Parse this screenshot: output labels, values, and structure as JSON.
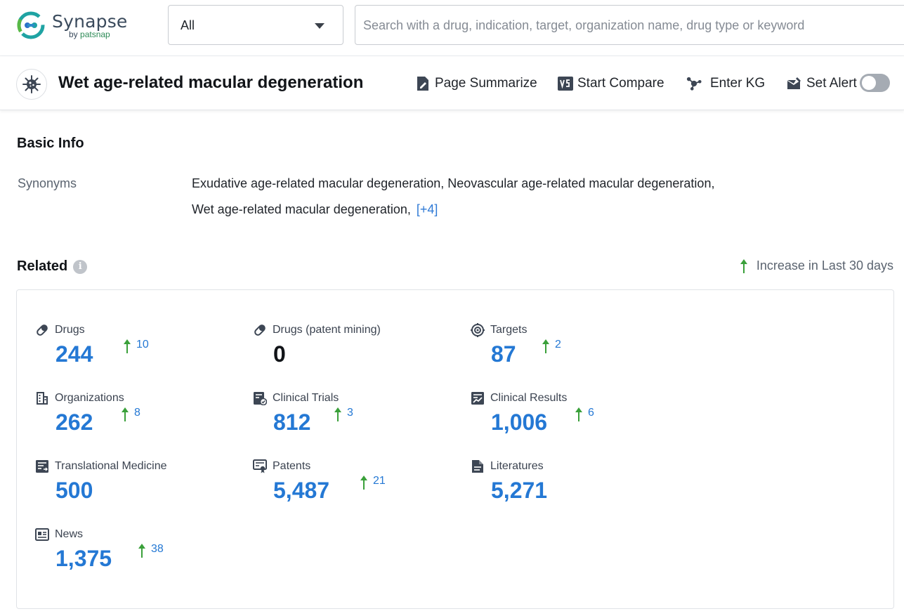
{
  "header": {
    "logo_name": "Synapse",
    "logo_by": "by",
    "logo_company": "patsnap",
    "filter_value": "All",
    "search_placeholder": "Search with a drug, indication, target, organization name, drug type or keyword"
  },
  "titlebar": {
    "title": "Wet age-related macular degeneration",
    "actions": {
      "summarize": "Page Summarize",
      "compare": "Start Compare",
      "kg": "Enter KG",
      "alert": "Set Alert"
    },
    "alert_enabled": false
  },
  "basic_info": {
    "title": "Basic Info",
    "synonyms_label": "Synonyms",
    "synonyms_line1": "Exudative age-related macular degeneration,  Neovascular age-related macular degeneration,",
    "synonyms_line2": "Wet age-related macular degeneration,",
    "synonyms_more": "[+4]"
  },
  "related": {
    "title": "Related",
    "info_glyph": "i",
    "increase_note": "Increase in Last 30 days",
    "stats": {
      "drugs": {
        "label": "Drugs",
        "value": "244",
        "increase": "10"
      },
      "drugs_patent": {
        "label": "Drugs (patent mining)",
        "value": "0"
      },
      "targets": {
        "label": "Targets",
        "value": "87",
        "increase": "2"
      },
      "organizations": {
        "label": "Organizations",
        "value": "262",
        "increase": "8"
      },
      "clinical_trials": {
        "label": "Clinical Trials",
        "value": "812",
        "increase": "3"
      },
      "clinical_results": {
        "label": "Clinical Results",
        "value": "1,006",
        "increase": "6"
      },
      "translational": {
        "label": "Translational Medicine",
        "value": "500"
      },
      "patents": {
        "label": "Patents",
        "value": "5,487",
        "increase": "21"
      },
      "literatures": {
        "label": "Literatures",
        "value": "5,271"
      },
      "news": {
        "label": "News",
        "value": "1,375",
        "increase": "38"
      }
    }
  },
  "colors": {
    "accent_blue": "#2478d4",
    "increase_green": "#3aa03a",
    "logo_teal": "#1fa3a3"
  },
  "icons": {
    "drugs": "pill-icon",
    "targets": "target-icon",
    "organizations": "building-icon",
    "clinical_trials": "clipboard-icon",
    "clinical_results": "chart-report-icon",
    "translational": "document-list-icon",
    "patents": "certificate-icon",
    "literatures": "file-icon",
    "news": "newspaper-icon"
  }
}
